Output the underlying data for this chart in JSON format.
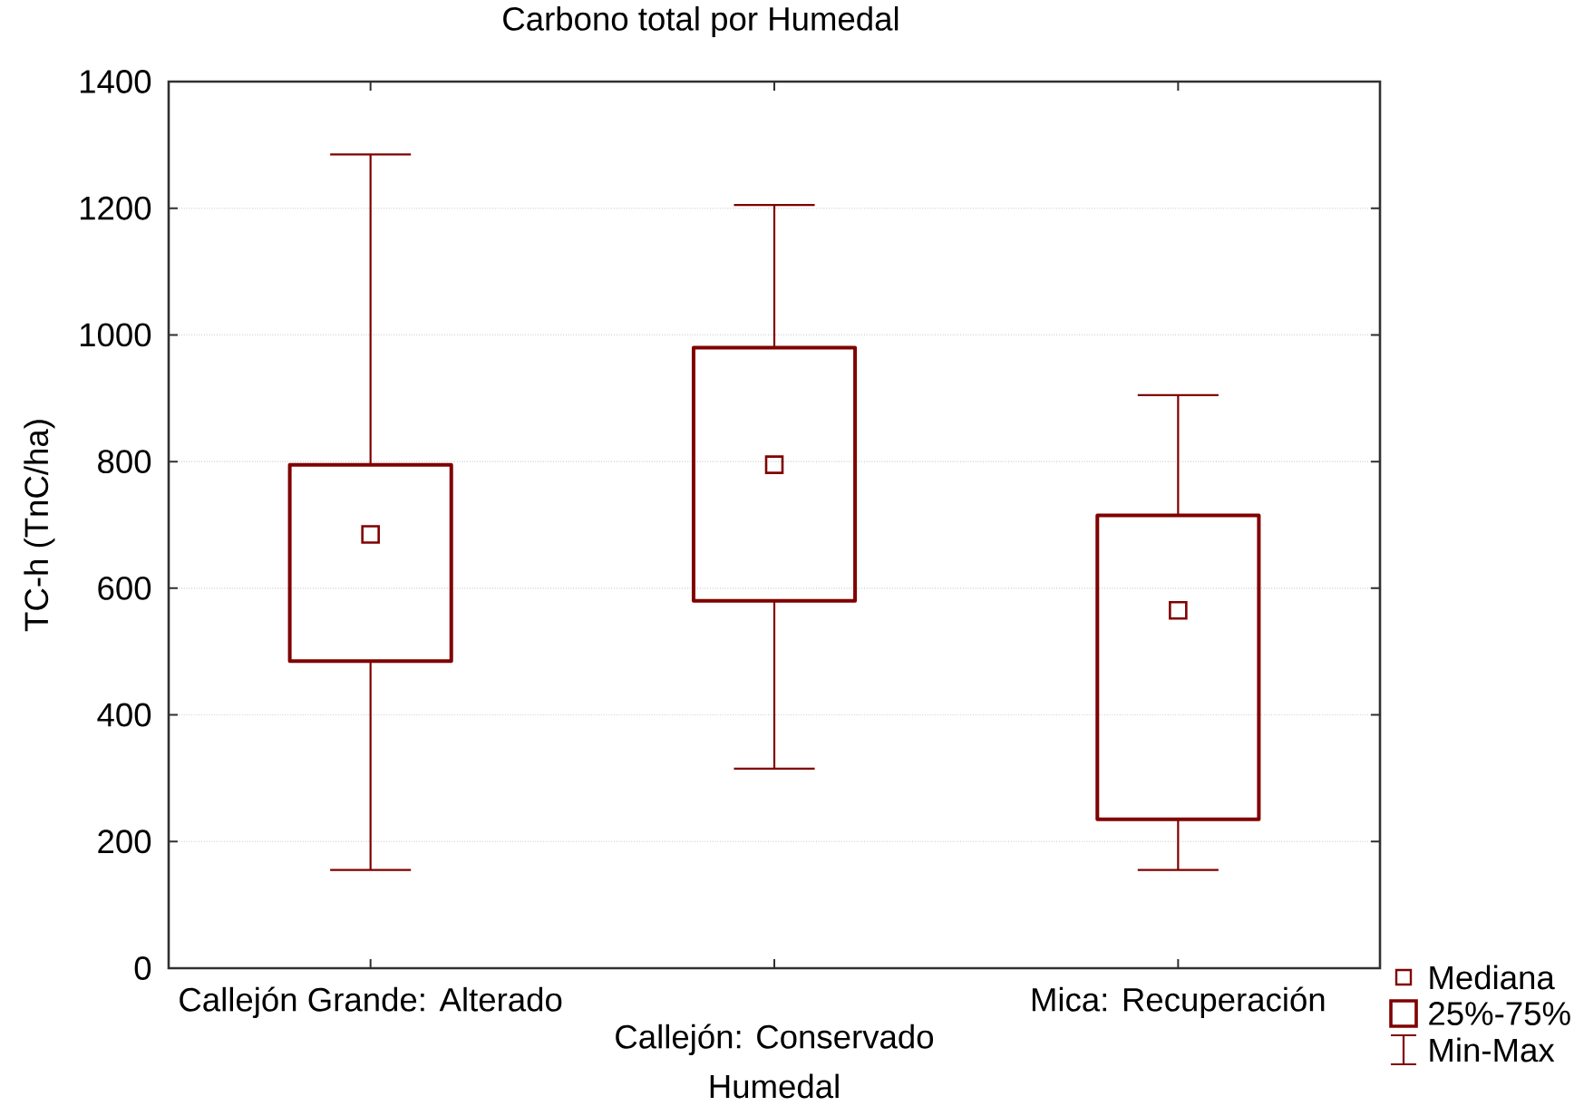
{
  "chart_data": {
    "type": "box",
    "title": "Carbono total por Humedal",
    "xlabel": "Humedal",
    "ylabel": "TC-h (TnC/ha)",
    "categories": [
      "Callejón Grande: Alterado",
      "Callejón: Conservado",
      "Mica: Recuperación"
    ],
    "boxes": [
      {
        "low": 155,
        "q1": 485,
        "median": 685,
        "q3": 795,
        "high": 1285
      },
      {
        "low": 315,
        "q1": 580,
        "median": 795,
        "q3": 980,
        "high": 1205
      },
      {
        "low": 155,
        "q1": 235,
        "median": 565,
        "q3": 715,
        "high": 905
      }
    ],
    "color": "#800000",
    "marker": "square",
    "ylim": [
      0,
      1400
    ],
    "yticks": [
      0,
      200,
      400,
      600,
      800,
      1000,
      1200,
      1400
    ],
    "grid": "y",
    "annotations": [
      "Mediana",
      "25%-75%",
      "Min-Max"
    ]
  }
}
